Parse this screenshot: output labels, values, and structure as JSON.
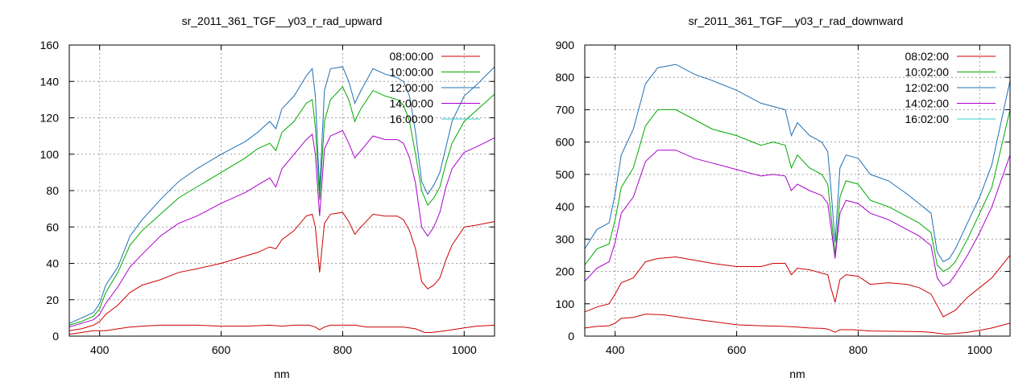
{
  "chart_data": [
    {
      "type": "line",
      "title": "sr_2011_361_TGF__y03_r_rad_upward",
      "xlabel": "nm",
      "ylabel": "",
      "xlim": [
        350,
        1050
      ],
      "ylim": [
        0,
        160
      ],
      "xticks": [
        400,
        600,
        800,
        1000
      ],
      "yticks": [
        0,
        20,
        40,
        60,
        80,
        100,
        120,
        140,
        160
      ],
      "grid": true,
      "legend_position": "top-right",
      "series": [
        {
          "name": "08:00:00",
          "color": "#cc0000",
          "x": [
            350,
            370,
            390,
            410,
            430,
            450,
            470,
            500,
            530,
            560,
            600,
            640,
            680,
            700,
            720,
            745,
            755,
            762,
            770,
            780,
            800,
            820,
            840,
            870,
            900,
            920,
            935,
            945,
            960,
            980,
            1000,
            1020,
            1050
          ],
          "y": [
            1,
            2,
            3,
            3,
            4,
            5,
            5.5,
            6,
            6,
            6,
            5.5,
            5.5,
            6,
            5.5,
            6,
            6,
            5,
            3.5,
            5,
            6,
            6,
            6,
            5,
            5,
            5,
            4,
            2,
            2,
            2.5,
            3.5,
            4.5,
            5.5,
            6
          ]
        },
        {
          "name": "08:00:00",
          "color": "#cc0000",
          "x": [
            350,
            370,
            390,
            400,
            410,
            430,
            450,
            470,
            500,
            530,
            560,
            600,
            640,
            660,
            680,
            690,
            700,
            720,
            740,
            750,
            755,
            762,
            770,
            780,
            800,
            810,
            820,
            830,
            850,
            870,
            890,
            900,
            910,
            920,
            930,
            940,
            950,
            960,
            970,
            980,
            1000,
            1020,
            1050
          ],
          "y": [
            3,
            4,
            6,
            8,
            12,
            17,
            24,
            28,
            31,
            35,
            37,
            40,
            44,
            46,
            49,
            48,
            53,
            58,
            66,
            67,
            60,
            35,
            62,
            67,
            68,
            63,
            56,
            60,
            67,
            66,
            66,
            64,
            58,
            48,
            30,
            26,
            28,
            32,
            42,
            50,
            60,
            61,
            63
          ]
        },
        {
          "name": "10:00:00",
          "color": "#00aa00",
          "x": [
            350,
            370,
            390,
            400,
            410,
            430,
            450,
            470,
            500,
            530,
            560,
            600,
            640,
            660,
            680,
            690,
            700,
            720,
            740,
            750,
            755,
            762,
            770,
            780,
            800,
            810,
            820,
            830,
            850,
            870,
            890,
            900,
            910,
            920,
            930,
            940,
            950,
            960,
            970,
            980,
            1000,
            1020,
            1050
          ],
          "y": [
            6,
            8,
            11,
            15,
            24,
            35,
            50,
            58,
            67,
            76,
            82,
            90,
            98,
            103,
            106,
            102,
            112,
            118,
            128,
            130,
            115,
            75,
            118,
            130,
            137,
            130,
            118,
            125,
            135,
            132,
            130,
            127,
            118,
            100,
            80,
            72,
            76,
            82,
            95,
            106,
            118,
            124,
            133
          ]
        },
        {
          "name": "12:00:00",
          "color": "#1f6fb4",
          "x": [
            350,
            370,
            390,
            400,
            410,
            430,
            450,
            470,
            500,
            530,
            560,
            600,
            640,
            660,
            680,
            690,
            700,
            720,
            740,
            750,
            755,
            762,
            770,
            780,
            800,
            810,
            820,
            830,
            850,
            870,
            890,
            900,
            910,
            920,
            930,
            940,
            950,
            960,
            970,
            980,
            1000,
            1020,
            1050
          ],
          "y": [
            7,
            10,
            13,
            18,
            28,
            38,
            55,
            64,
            75,
            85,
            92,
            100,
            107,
            112,
            118,
            114,
            125,
            132,
            143,
            147,
            132,
            80,
            135,
            147,
            148,
            140,
            128,
            135,
            147,
            144,
            142,
            140,
            132,
            112,
            85,
            78,
            83,
            90,
            104,
            118,
            132,
            138,
            148
          ]
        },
        {
          "name": "14:00:00",
          "color": "#aa00cc",
          "x": [
            350,
            370,
            390,
            400,
            410,
            430,
            450,
            470,
            500,
            530,
            560,
            600,
            640,
            660,
            680,
            690,
            700,
            720,
            740,
            750,
            755,
            762,
            770,
            780,
            800,
            810,
            820,
            830,
            850,
            870,
            890,
            900,
            910,
            920,
            930,
            940,
            950,
            960,
            970,
            980,
            1000,
            1020,
            1050
          ],
          "y": [
            5,
            7,
            9,
            12,
            18,
            27,
            38,
            45,
            55,
            62,
            66,
            73,
            79,
            83,
            87,
            82,
            92,
            100,
            108,
            111,
            100,
            66,
            103,
            110,
            113,
            106,
            98,
            102,
            110,
            108,
            108,
            106,
            98,
            84,
            60,
            55,
            60,
            68,
            82,
            92,
            101,
            104,
            109
          ]
        },
        {
          "name": "16:00:00",
          "color": "#33cccc",
          "x": [],
          "y": []
        }
      ]
    },
    {
      "type": "line",
      "title": "sr_2011_361_TGF__y03_r_rad_downward",
      "xlabel": "nm",
      "ylabel": "",
      "xlim": [
        350,
        1050
      ],
      "ylim": [
        0,
        900
      ],
      "xticks": [
        400,
        600,
        800,
        1000
      ],
      "yticks": [
        0,
        100,
        200,
        300,
        400,
        500,
        600,
        700,
        800,
        900
      ],
      "grid": true,
      "legend_position": "top-right",
      "series": [
        {
          "name": "08:02:00",
          "color": "#cc0000",
          "x": [
            350,
            370,
            390,
            400,
            410,
            430,
            450,
            480,
            520,
            560,
            600,
            640,
            680,
            700,
            720,
            740,
            750,
            755,
            762,
            770,
            790,
            820,
            860,
            900,
            920,
            935,
            945,
            960,
            980,
            1000,
            1020,
            1050
          ],
          "y": [
            25,
            30,
            32,
            40,
            55,
            58,
            68,
            66,
            55,
            45,
            35,
            32,
            30,
            28,
            25,
            24,
            22,
            18,
            12,
            20,
            20,
            16,
            15,
            14,
            12,
            8,
            6,
            8,
            12,
            18,
            25,
            40
          ]
        },
        {
          "name": "08:02:00",
          "color": "#cc0000",
          "x": [
            350,
            370,
            390,
            400,
            410,
            430,
            450,
            470,
            500,
            530,
            560,
            600,
            640,
            660,
            680,
            690,
            700,
            720,
            740,
            750,
            755,
            762,
            770,
            780,
            800,
            820,
            850,
            880,
            900,
            920,
            930,
            940,
            950,
            960,
            980,
            1000,
            1020,
            1050
          ],
          "y": [
            75,
            90,
            100,
            130,
            165,
            180,
            230,
            240,
            245,
            235,
            225,
            215,
            215,
            225,
            225,
            190,
            210,
            205,
            195,
            190,
            150,
            105,
            175,
            190,
            185,
            160,
            165,
            160,
            150,
            130,
            95,
            60,
            70,
            80,
            120,
            150,
            180,
            250
          ]
        },
        {
          "name": "10:02:00",
          "color": "#00aa00",
          "x": [
            350,
            370,
            390,
            400,
            410,
            430,
            450,
            470,
            500,
            530,
            560,
            600,
            640,
            660,
            680,
            690,
            700,
            720,
            740,
            750,
            755,
            762,
            770,
            780,
            800,
            820,
            850,
            880,
            900,
            920,
            930,
            940,
            950,
            960,
            980,
            1000,
            1020,
            1050
          ],
          "y": [
            220,
            270,
            285,
            360,
            460,
            520,
            650,
            700,
            700,
            670,
            640,
            620,
            590,
            600,
            590,
            520,
            560,
            520,
            500,
            470,
            380,
            250,
            430,
            480,
            470,
            420,
            400,
            370,
            350,
            320,
            220,
            200,
            210,
            230,
            300,
            380,
            460,
            700
          ]
        },
        {
          "name": "12:02:00",
          "color": "#1f6fb4",
          "x": [
            350,
            370,
            390,
            400,
            410,
            430,
            450,
            470,
            500,
            530,
            560,
            600,
            640,
            660,
            680,
            690,
            700,
            720,
            740,
            750,
            755,
            762,
            770,
            780,
            800,
            820,
            850,
            880,
            900,
            920,
            930,
            940,
            950,
            960,
            980,
            1000,
            1020,
            1050
          ],
          "y": [
            270,
            330,
            350,
            440,
            560,
            640,
            780,
            830,
            840,
            810,
            790,
            760,
            720,
            710,
            700,
            620,
            660,
            620,
            600,
            570,
            460,
            290,
            520,
            560,
            550,
            500,
            480,
            440,
            410,
            380,
            260,
            230,
            240,
            270,
            350,
            430,
            530,
            790
          ]
        },
        {
          "name": "14:02:00",
          "color": "#aa00cc",
          "x": [
            350,
            370,
            390,
            400,
            410,
            430,
            450,
            470,
            500,
            530,
            560,
            600,
            640,
            660,
            680,
            690,
            700,
            720,
            740,
            750,
            755,
            762,
            770,
            780,
            800,
            820,
            850,
            880,
            900,
            920,
            930,
            940,
            950,
            960,
            980,
            1000,
            1020,
            1050
          ],
          "y": [
            170,
            210,
            230,
            290,
            380,
            430,
            540,
            575,
            575,
            550,
            535,
            515,
            495,
            500,
            495,
            450,
            470,
            450,
            435,
            410,
            340,
            240,
            380,
            420,
            410,
            380,
            360,
            330,
            310,
            280,
            180,
            155,
            165,
            190,
            250,
            320,
            400,
            560
          ]
        },
        {
          "name": "16:02:00",
          "color": "#33cccc",
          "x": [],
          "y": []
        }
      ]
    }
  ]
}
